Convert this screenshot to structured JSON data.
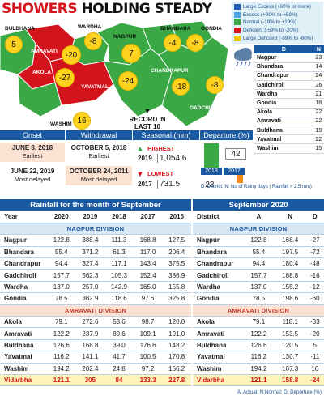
{
  "title": {
    "part1": "SHOWERS",
    "part2": "HOLDING STEADY"
  },
  "legend": [
    {
      "label": "Large Excess (+60% or more)",
      "color": "#1f5fb5"
    },
    {
      "label": "Excess (+20% to +59%)",
      "color": "#4aa3e0"
    },
    {
      "label": "Normal (-19% to +19%)",
      "color": "#39a845"
    },
    {
      "label": "Deficient (-59% to -20%)",
      "color": "#d4141c"
    },
    {
      "label": "Large Deficient (-99% to -60%)",
      "color": "#f2c500"
    }
  ],
  "map": {
    "cities": [
      "BULDHANA",
      "WARDHA",
      "NAGPUR",
      "BHANDARA",
      "GONDIA",
      "AMRAVATI",
      "AKOLA",
      "YAVATMAL",
      "CHANDRAPUR",
      "GADCHIROLI",
      "WASHIM"
    ],
    "bubbles": [
      "5",
      "-8",
      "-4",
      "-8",
      "-20",
      "7",
      "-27",
      "-24",
      "-18",
      "-8",
      "16"
    ]
  },
  "rainy_days": {
    "headers": {
      "district": "D",
      "n": "N"
    },
    "rows": [
      {
        "d": "Nagpur",
        "n": "23"
      },
      {
        "d": "Bhandara",
        "n": "14"
      },
      {
        "d": "Chandrapur",
        "n": "24"
      },
      {
        "d": "Gadchiroli",
        "n": "26"
      },
      {
        "d": "Wardha",
        "n": "21"
      },
      {
        "d": "Gondia",
        "n": "18"
      },
      {
        "d": "Akola",
        "n": "22"
      },
      {
        "d": "Amravati",
        "n": "22"
      },
      {
        "d": "Buldhana",
        "n": "19"
      },
      {
        "d": "Yavatmal",
        "n": "22"
      },
      {
        "d": "Washim",
        "n": "15"
      }
    ]
  },
  "record_note": "RECORD IN LAST 10 YEARS",
  "panel": {
    "onset": {
      "header": "Onset",
      "earliest_date": "JUNE 8, 2018",
      "earliest_label": "Earliest",
      "delayed_date": "JUNE 22, 2019",
      "delayed_label": "Most delayed"
    },
    "withdrawal": {
      "header": "Withdrawal",
      "earliest_date": "OCTOBER 5, 2018",
      "earliest_label": "Earliest",
      "delayed_date": "OCTOBER 24, 2011",
      "delayed_label": "Most delayed"
    },
    "seasonal": {
      "header": "Seasonal (mm)",
      "high_label": "HIGHEST",
      "high_year": "2019",
      "high_value": "1,054.6",
      "low_label": "LOWEST",
      "low_year": "2017",
      "low_value": "731.5"
    },
    "departure": {
      "header": "Departure (%)",
      "val_2013": "42",
      "val_2017": "-23",
      "year1": "2013",
      "year2": "2017"
    }
  },
  "departure_note": "D: District; N: No of Rainy days ( Rainfall > 2.5 mm)",
  "rainfall_table": {
    "title": "Rainfall for the month of September",
    "headers": [
      "Year",
      "2020",
      "2019",
      "2018",
      "2017",
      "2016"
    ],
    "nagpur_division": "NAGPUR DIVISION",
    "amravati_division": "AMRAVATI DIVISION",
    "nagpur_rows": [
      [
        "Nagpur",
        "122.8",
        "388.4",
        "111.3",
        "168.8",
        "127.5"
      ],
      [
        "Bhandara",
        "55.4",
        "371.2",
        "61.3",
        "117.0",
        "206.4"
      ],
      [
        "Chandrapur",
        "94.4",
        "327.4",
        "117.1",
        "143.4",
        "375.5"
      ],
      [
        "Gadchiroli",
        "157.7",
        "562.3",
        "105.3",
        "152.4",
        "386.9"
      ],
      [
        "Wardha",
        "137.0",
        "257.0",
        "142.9",
        "165.0",
        "155.8"
      ],
      [
        "Gondia",
        "78.5",
        "362.9",
        "118.6",
        "97.6",
        "325.8"
      ]
    ],
    "amravati_rows": [
      [
        "Akola",
        "79.1",
        "272.6",
        "53.6",
        "98.7",
        "120.0"
      ],
      [
        "Amravati",
        "122.2",
        "237.9",
        "89.6",
        "109.1",
        "191.0"
      ],
      [
        "Buldhana",
        "126.6",
        "168.8",
        "39.0",
        "176.6",
        "148.2"
      ],
      [
        "Yavatmal",
        "116.2",
        "141.1",
        "41.7",
        "100.5",
        "170.8"
      ],
      [
        "Washim",
        "194.2",
        "202.4",
        "24.8",
        "97.2",
        "156.2"
      ]
    ],
    "total_row": [
      "Vidarbha",
      "121.1",
      "305",
      "84",
      "133.3",
      "227.8"
    ]
  },
  "sept_table": {
    "title": "September 2020",
    "headers": [
      "District",
      "A",
      "N",
      "D"
    ],
    "nagpur_division": "NAGPUR DIVISION",
    "amravati_division": "AMRAVATI DIVISION",
    "nagpur_rows": [
      [
        "Nagpur",
        "122.8",
        "168.4",
        "-27"
      ],
      [
        "Bhandara",
        "55.4",
        "197.5",
        "-72"
      ],
      [
        "Chandrapur",
        "94.4",
        "180.4",
        "-48"
      ],
      [
        "Gadchiroli",
        "157.7",
        "188.8",
        "-16"
      ],
      [
        "Wardha",
        "137.0",
        "155.2",
        "-12"
      ],
      [
        "Gondia",
        "78.5",
        "198.6",
        "-60"
      ]
    ],
    "amravati_rows": [
      [
        "Akola",
        "79.1",
        "118.1",
        "-33"
      ],
      [
        "Amravati",
        "122.2",
        "153.5",
        "-20"
      ],
      [
        "Buldhana",
        "126.6",
        "120.5",
        "5"
      ],
      [
        "Yavatmal",
        "116.2",
        "130.7",
        "-11"
      ],
      [
        "Washim",
        "194.2",
        "167.3",
        "16"
      ]
    ],
    "total_row": [
      "Vidarbha",
      "121.1",
      "158.8",
      "-24"
    ],
    "footnote": "A: Actual; N:Normal; D: Deporture (%)"
  }
}
